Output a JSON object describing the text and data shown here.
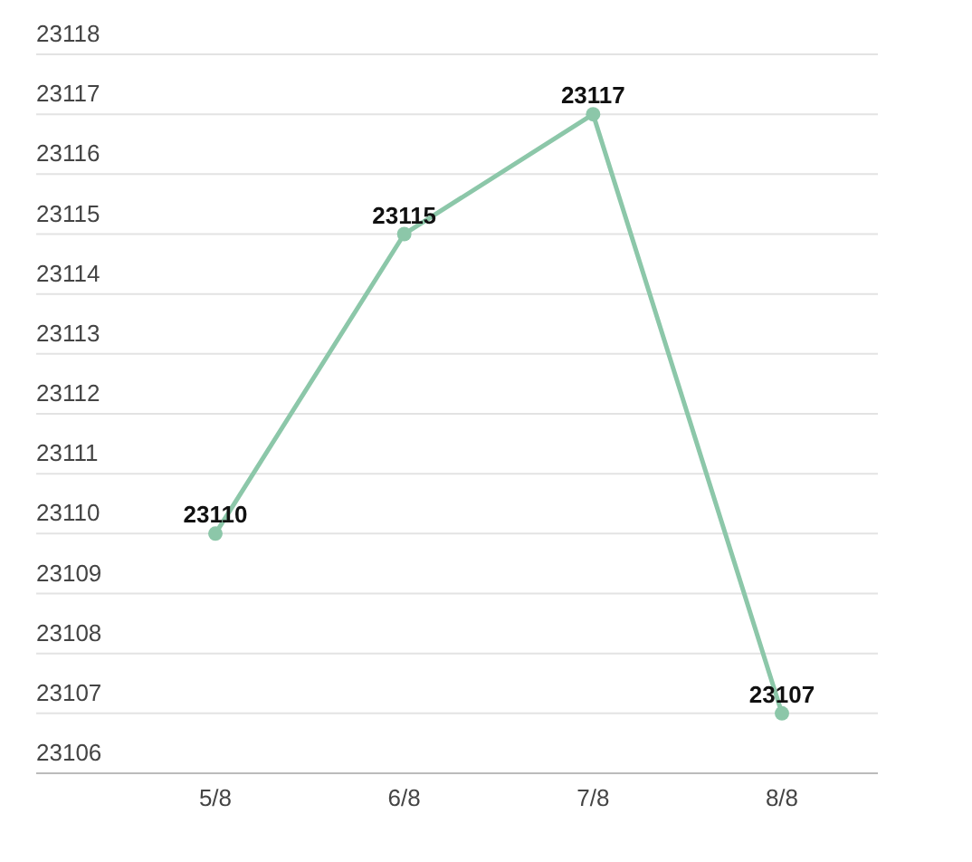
{
  "chart_data": {
    "type": "line",
    "categories": [
      "5/8",
      "6/8",
      "7/8",
      "8/8"
    ],
    "series": [
      {
        "color": "#8cc7a9",
        "values": [
          23110,
          23115,
          23117,
          23107
        ]
      }
    ],
    "ylim": [
      23106,
      23118
    ],
    "yticks": [
      23106,
      23107,
      23108,
      23109,
      23110,
      23111,
      23112,
      23113,
      23114,
      23115,
      23116,
      23117,
      23118
    ],
    "grid": "y",
    "marker": "circle",
    "data_labels": true
  }
}
